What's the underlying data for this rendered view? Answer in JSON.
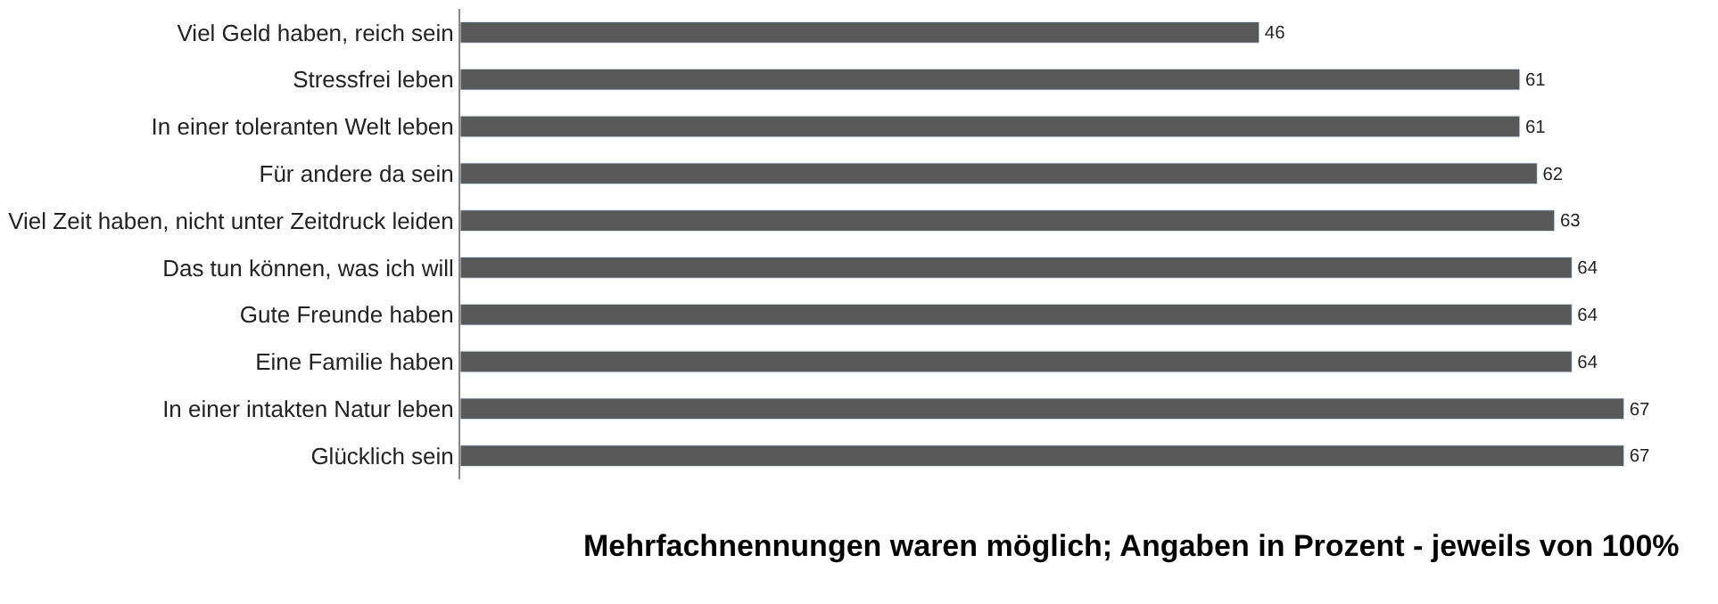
{
  "chart_data": {
    "type": "bar",
    "orientation": "horizontal",
    "categories": [
      "Viel Geld haben, reich sein",
      "Stressfrei leben",
      "In einer toleranten Welt leben",
      "Für andere da sein",
      "Viel Zeit haben, nicht unter Zeitdruck leiden",
      "Das tun können, was ich will",
      "Gute Freunde haben",
      "Eine Familie haben",
      "In einer intakten Natur leben",
      "Glücklich sein"
    ],
    "values": [
      46,
      61,
      61,
      62,
      63,
      64,
      64,
      64,
      67,
      67
    ],
    "color": "#595959",
    "data_labels": true,
    "legend": false,
    "annotations": [
      "Mehrfachnennungen waren möglich; Angaben in Prozent - jeweils von 100%"
    ]
  }
}
